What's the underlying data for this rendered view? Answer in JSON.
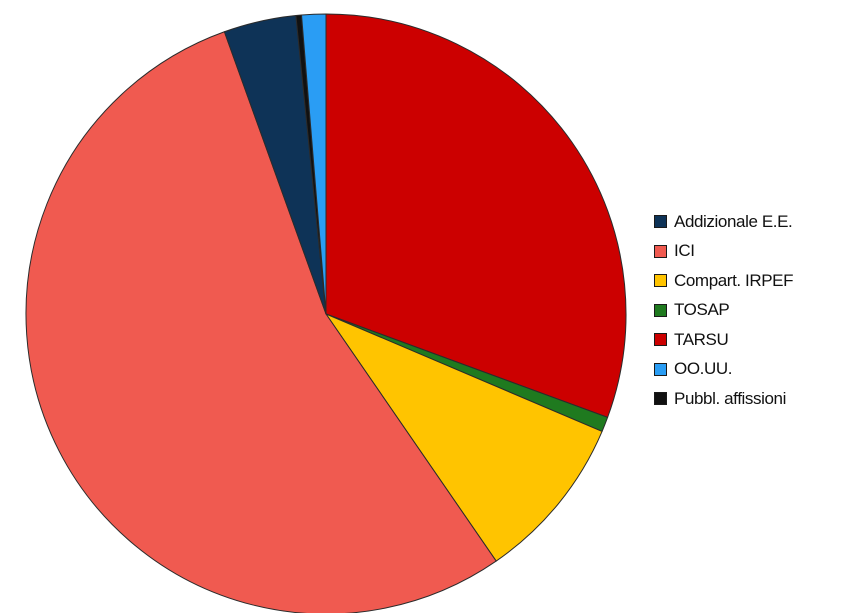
{
  "chart_data": {
    "type": "pie",
    "start_angle_deg": 0,
    "direction": "clockwise",
    "legend_position": "right",
    "slices": [
      {
        "label": "TARSU",
        "value": 30.6,
        "color": "#cc0000"
      },
      {
        "label": "TOSAP",
        "value": 0.8,
        "color": "#1f7a1f"
      },
      {
        "label": "Compart. IRPEF",
        "value": 9.0,
        "color": "#ffc400"
      },
      {
        "label": "ICI",
        "value": 54.1,
        "color": "#f05a50"
      },
      {
        "label": "Addizionale E.E.",
        "value": 3.9,
        "color": "#0e3357"
      },
      {
        "label": "Pubbl. affissioni",
        "value": 0.3,
        "color": "#111111"
      },
      {
        "label": "OO.UU.",
        "value": 1.3,
        "color": "#2a9df4"
      }
    ],
    "legend": [
      {
        "label": "Addizionale E.E.",
        "color": "#0e3357"
      },
      {
        "label": "ICI",
        "color": "#f05a50"
      },
      {
        "label": "Compart. IRPEF",
        "color": "#ffc400"
      },
      {
        "label": "TOSAP",
        "color": "#1f7a1f"
      },
      {
        "label": "TARSU",
        "color": "#cc0000"
      },
      {
        "label": "OO.UU.",
        "color": "#2a9df4"
      },
      {
        "label": "Pubbl. affissioni",
        "color": "#111111"
      }
    ]
  }
}
